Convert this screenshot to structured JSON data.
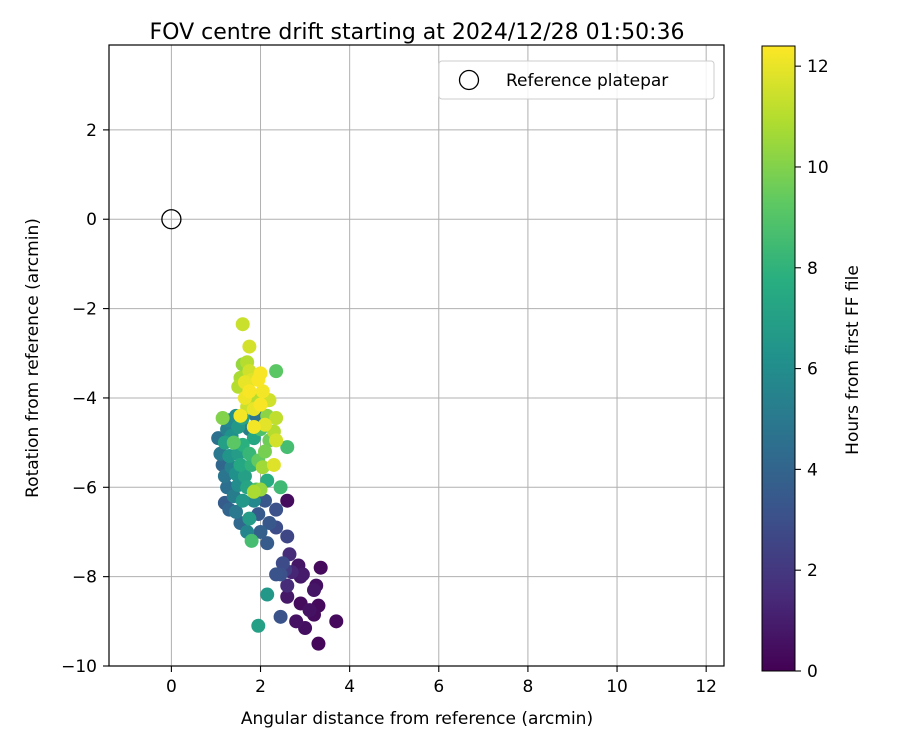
{
  "chart_data": {
    "type": "scatter",
    "title": "FOV centre drift starting at 2024/12/28 01:50:36",
    "xlabel": "Angular distance from reference (arcmin)",
    "ylabel": "Rotation from reference (arcmin)",
    "xlim": [
      -1.4,
      12.4
    ],
    "ylim": [
      -10,
      3.9
    ],
    "xticks": [
      0,
      2,
      4,
      6,
      8,
      10,
      12
    ],
    "yticks": [
      -10,
      -8,
      -6,
      -4,
      -2,
      0,
      2
    ],
    "grid": true,
    "legend": {
      "placement": "top-right",
      "entries": [
        "Reference platepar"
      ]
    },
    "reference": {
      "name": "Reference platepar",
      "x": 0,
      "y": 0
    },
    "colorbar": {
      "label": "Hours from first FF file",
      "range": [
        0,
        12.4
      ],
      "ticks": [
        0,
        2,
        4,
        6,
        8,
        10,
        12
      ],
      "colormap": "viridis"
    },
    "points": [
      {
        "x": 3.3,
        "y": -9.5,
        "t": 0.2
      },
      {
        "x": 3.7,
        "y": -9.0,
        "t": 0.3
      },
      {
        "x": 3.3,
        "y": -8.65,
        "t": 0.3
      },
      {
        "x": 3.2,
        "y": -8.85,
        "t": 0.4
      },
      {
        "x": 3.0,
        "y": -9.15,
        "t": 0.5
      },
      {
        "x": 2.8,
        "y": -9.0,
        "t": 0.6
      },
      {
        "x": 3.1,
        "y": -8.75,
        "t": 0.6
      },
      {
        "x": 2.9,
        "y": -8.6,
        "t": 0.4
      },
      {
        "x": 3.25,
        "y": -8.2,
        "t": 0.5
      },
      {
        "x": 3.2,
        "y": -8.3,
        "t": 0.7
      },
      {
        "x": 2.9,
        "y": -8.0,
        "t": 0.8
      },
      {
        "x": 2.95,
        "y": -7.95,
        "t": 0.9
      },
      {
        "x": 3.35,
        "y": -7.8,
        "t": 0.3
      },
      {
        "x": 2.85,
        "y": -7.75,
        "t": 0.7
      },
      {
        "x": 2.6,
        "y": -8.45,
        "t": 0.8
      },
      {
        "x": 2.6,
        "y": -8.2,
        "t": 1.5
      },
      {
        "x": 2.7,
        "y": -7.9,
        "t": 1.3
      },
      {
        "x": 2.55,
        "y": -7.85,
        "t": 2.2
      },
      {
        "x": 2.65,
        "y": -7.5,
        "t": 1.5
      },
      {
        "x": 2.5,
        "y": -7.7,
        "t": 2.8
      },
      {
        "x": 2.45,
        "y": -7.95,
        "t": 3.0
      },
      {
        "x": 2.35,
        "y": -7.95,
        "t": 3.2
      },
      {
        "x": 2.6,
        "y": -7.1,
        "t": 2.6
      },
      {
        "x": 2.35,
        "y": -6.9,
        "t": 2.9
      },
      {
        "x": 2.35,
        "y": -6.5,
        "t": 3.1
      },
      {
        "x": 2.6,
        "y": -6.3,
        "t": 0.4
      },
      {
        "x": 2.2,
        "y": -6.8,
        "t": 3.4
      },
      {
        "x": 2.15,
        "y": -7.25,
        "t": 3.6
      },
      {
        "x": 2.0,
        "y": -7.0,
        "t": 3.8
      },
      {
        "x": 2.45,
        "y": -8.9,
        "t": 3.2
      },
      {
        "x": 2.15,
        "y": -8.4,
        "t": 6.6
      },
      {
        "x": 1.95,
        "y": -9.1,
        "t": 7.0
      },
      {
        "x": 1.8,
        "y": -7.2,
        "t": 8.6
      },
      {
        "x": 1.7,
        "y": -7.0,
        "t": 5.6
      },
      {
        "x": 1.55,
        "y": -6.8,
        "t": 4.2
      },
      {
        "x": 1.3,
        "y": -6.5,
        "t": 4.0
      },
      {
        "x": 1.2,
        "y": -6.35,
        "t": 3.6
      },
      {
        "x": 1.45,
        "y": -6.55,
        "t": 5.0
      },
      {
        "x": 1.75,
        "y": -6.7,
        "t": 6.8
      },
      {
        "x": 1.95,
        "y": -6.6,
        "t": 3.5
      },
      {
        "x": 2.1,
        "y": -6.3,
        "t": 3.4
      },
      {
        "x": 1.85,
        "y": -6.3,
        "t": 5.8
      },
      {
        "x": 1.6,
        "y": -6.3,
        "t": 6.5
      },
      {
        "x": 1.4,
        "y": -6.2,
        "t": 5.2
      },
      {
        "x": 1.25,
        "y": -6.0,
        "t": 4.5
      },
      {
        "x": 1.5,
        "y": -5.95,
        "t": 6.0
      },
      {
        "x": 1.7,
        "y": -6.0,
        "t": 7.2
      },
      {
        "x": 1.9,
        "y": -6.05,
        "t": 9.0
      },
      {
        "x": 2.0,
        "y": -6.05,
        "t": 10.4
      },
      {
        "x": 1.85,
        "y": -6.1,
        "t": 10.8
      },
      {
        "x": 2.45,
        "y": -6.0,
        "t": 8.4
      },
      {
        "x": 2.15,
        "y": -5.85,
        "t": 7.6
      },
      {
        "x": 1.2,
        "y": -5.75,
        "t": 4.8
      },
      {
        "x": 1.45,
        "y": -5.7,
        "t": 6.2
      },
      {
        "x": 1.65,
        "y": -5.75,
        "t": 7.0
      },
      {
        "x": 1.35,
        "y": -5.55,
        "t": 5.5
      },
      {
        "x": 1.15,
        "y": -5.5,
        "t": 4.1
      },
      {
        "x": 1.55,
        "y": -5.5,
        "t": 7.4
      },
      {
        "x": 1.8,
        "y": -5.5,
        "t": 8.0
      },
      {
        "x": 2.05,
        "y": -5.55,
        "t": 10.6
      },
      {
        "x": 2.3,
        "y": -5.5,
        "t": 11.8
      },
      {
        "x": 1.95,
        "y": -5.4,
        "t": 9.4
      },
      {
        "x": 1.3,
        "y": -5.3,
        "t": 6.4
      },
      {
        "x": 1.1,
        "y": -5.25,
        "t": 5.0
      },
      {
        "x": 1.5,
        "y": -5.25,
        "t": 6.8
      },
      {
        "x": 1.75,
        "y": -5.25,
        "t": 8.2
      },
      {
        "x": 2.1,
        "y": -5.2,
        "t": 9.8
      },
      {
        "x": 1.6,
        "y": -5.05,
        "t": 7.8
      },
      {
        "x": 1.4,
        "y": -5.0,
        "t": 9.2
      },
      {
        "x": 1.2,
        "y": -5.0,
        "t": 7.0
      },
      {
        "x": 1.05,
        "y": -4.9,
        "t": 4.6
      },
      {
        "x": 1.35,
        "y": -4.85,
        "t": 6.2
      },
      {
        "x": 1.85,
        "y": -4.9,
        "t": 7.4
      },
      {
        "x": 2.2,
        "y": -4.95,
        "t": 9.6
      },
      {
        "x": 2.35,
        "y": -4.95,
        "t": 11.6
      },
      {
        "x": 2.6,
        "y": -5.1,
        "t": 8.6
      },
      {
        "x": 1.25,
        "y": -4.7,
        "t": 5.4
      },
      {
        "x": 1.5,
        "y": -4.65,
        "t": 6.6
      },
      {
        "x": 1.75,
        "y": -4.7,
        "t": 5.2
      },
      {
        "x": 2.0,
        "y": -4.7,
        "t": 8.8
      },
      {
        "x": 2.3,
        "y": -4.75,
        "t": 11.0
      },
      {
        "x": 1.85,
        "y": -4.65,
        "t": 12.2
      },
      {
        "x": 2.1,
        "y": -4.6,
        "t": 11.9
      },
      {
        "x": 1.3,
        "y": -4.5,
        "t": 5.8
      },
      {
        "x": 1.45,
        "y": -4.4,
        "t": 6.0
      },
      {
        "x": 1.6,
        "y": -4.45,
        "t": 7.2
      },
      {
        "x": 1.15,
        "y": -4.45,
        "t": 10.0
      },
      {
        "x": 1.9,
        "y": -4.4,
        "t": 4.8
      },
      {
        "x": 2.15,
        "y": -4.4,
        "t": 10.2
      },
      {
        "x": 2.35,
        "y": -4.45,
        "t": 11.2
      },
      {
        "x": 1.55,
        "y": -4.4,
        "t": 12.2
      },
      {
        "x": 1.7,
        "y": -4.2,
        "t": 11.4
      },
      {
        "x": 1.85,
        "y": -4.25,
        "t": 12.0
      },
      {
        "x": 2.0,
        "y": -4.15,
        "t": 12.3
      },
      {
        "x": 2.2,
        "y": -4.05,
        "t": 11.5
      },
      {
        "x": 1.65,
        "y": -4.0,
        "t": 12.1
      },
      {
        "x": 1.9,
        "y": -4.0,
        "t": 11.0
      },
      {
        "x": 1.75,
        "y": -3.85,
        "t": 12.3
      },
      {
        "x": 2.05,
        "y": -3.85,
        "t": 12.2
      },
      {
        "x": 1.5,
        "y": -3.75,
        "t": 11.0
      },
      {
        "x": 1.65,
        "y": -3.65,
        "t": 12.0
      },
      {
        "x": 1.95,
        "y": -3.6,
        "t": 12.3
      },
      {
        "x": 1.8,
        "y": -3.6,
        "t": 11.8
      },
      {
        "x": 1.55,
        "y": -3.55,
        "t": 10.8
      },
      {
        "x": 2.0,
        "y": -3.45,
        "t": 12.3
      },
      {
        "x": 1.75,
        "y": -3.4,
        "t": 11.5
      },
      {
        "x": 2.35,
        "y": -3.4,
        "t": 9.2
      },
      {
        "x": 1.6,
        "y": -3.25,
        "t": 10.4
      },
      {
        "x": 1.7,
        "y": -3.2,
        "t": 11.0
      },
      {
        "x": 1.75,
        "y": -2.85,
        "t": 11.6
      },
      {
        "x": 1.6,
        "y": -2.35,
        "t": 11.4
      }
    ]
  }
}
